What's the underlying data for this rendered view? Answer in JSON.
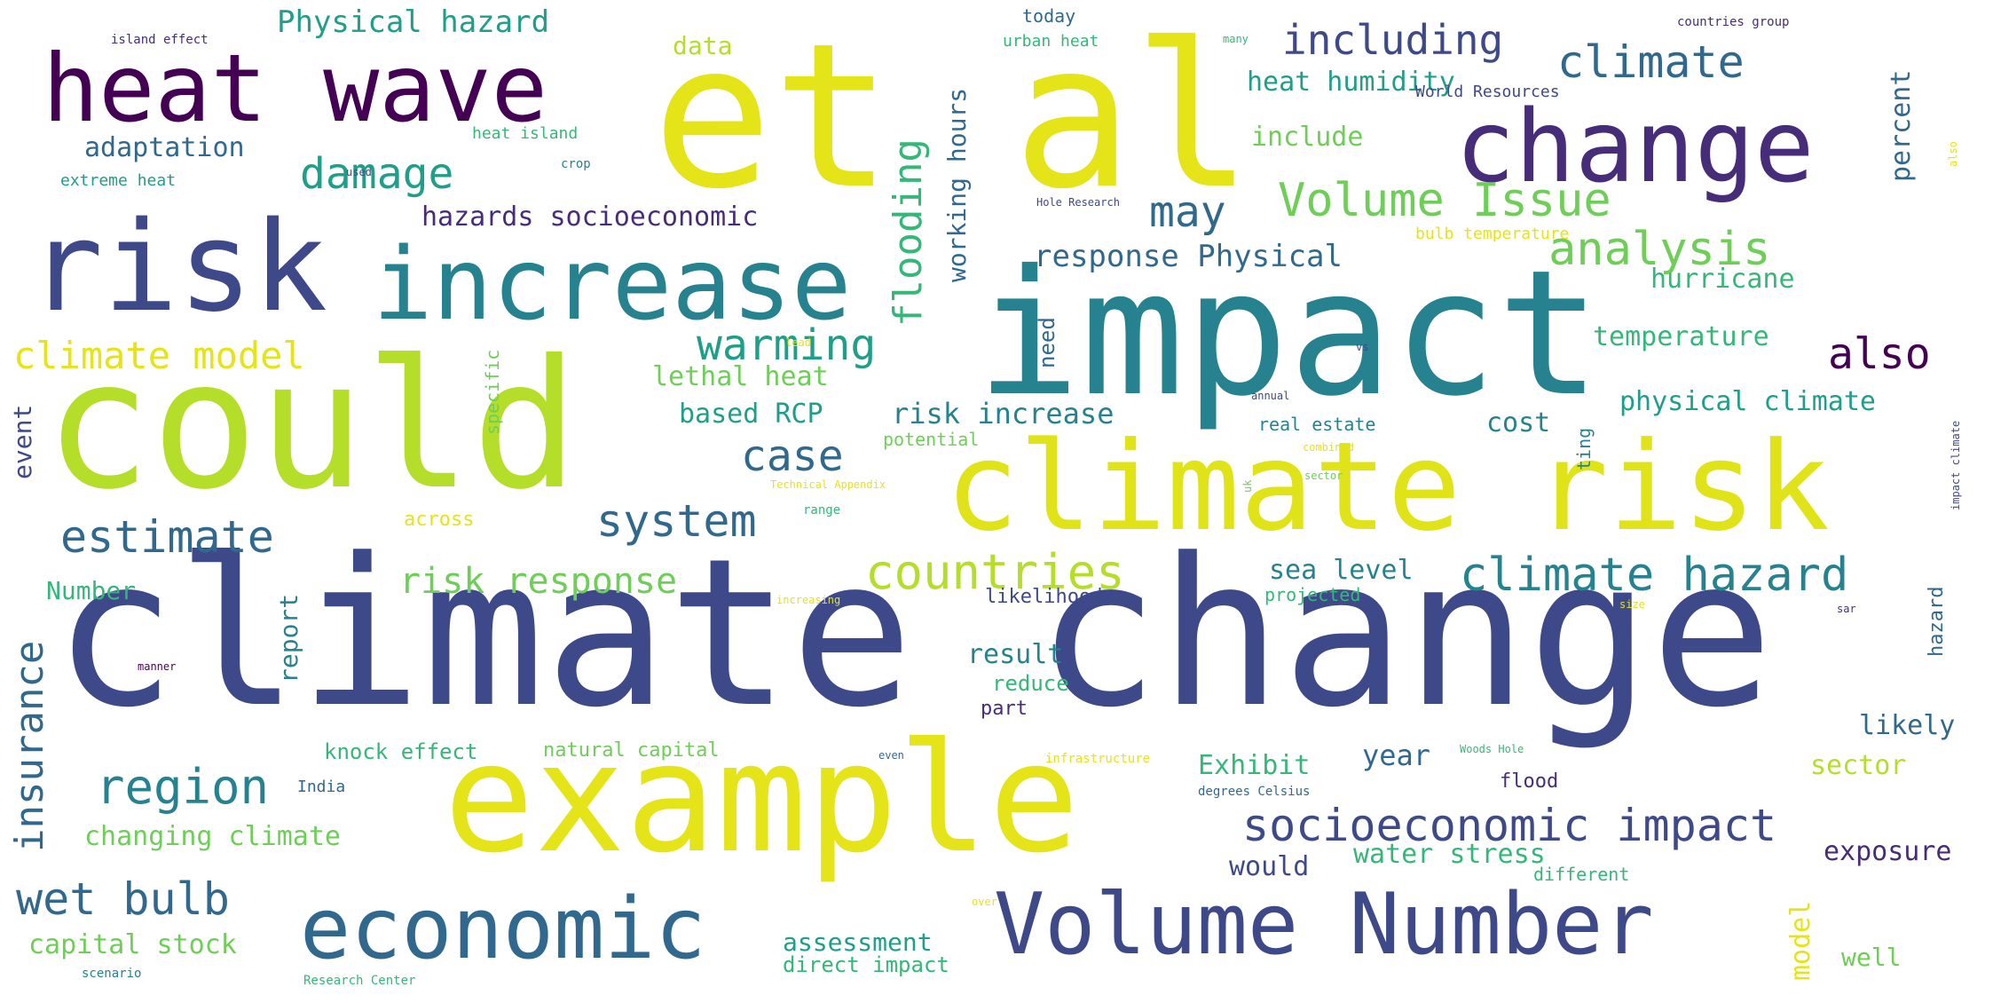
{
  "palette": {
    "background": "#ffffff",
    "dark-purple": "#440154",
    "purple": "#472c7a",
    "indigo": "#3e4989",
    "blue": "#31688e",
    "teal": "#26828e",
    "green-teal": "#1f9e89",
    "green": "#35b779",
    "light-green": "#6ece58",
    "lime": "#b5de2b",
    "yellow": "#e4e419"
  },
  "words": [
    {
      "text": "climate change",
      "color": "#3e4989"
    },
    {
      "text": "et al",
      "color": "#e4e419"
    },
    {
      "text": "impact",
      "color": "#26828e"
    },
    {
      "text": "could",
      "color": "#b5de2b"
    },
    {
      "text": "example",
      "color": "#e4e419"
    },
    {
      "text": "climate risk",
      "color": "#dfe318"
    },
    {
      "text": "risk",
      "color": "#3e4989"
    },
    {
      "text": "increase",
      "color": "#26828e"
    },
    {
      "text": "heat wave",
      "color": "#440154"
    },
    {
      "text": "change",
      "color": "#472c7a"
    },
    {
      "text": "Volume Number",
      "color": "#3e4989"
    },
    {
      "text": "economic",
      "color": "#31688e"
    },
    {
      "text": "socioeconomic impact",
      "color": "#3e4989"
    },
    {
      "text": "climate hazard",
      "color": "#26828e"
    },
    {
      "text": "countries",
      "color": "#b5de2b"
    },
    {
      "text": "Volume Issue",
      "color": "#6ece58"
    },
    {
      "text": "climate",
      "color": "#31688e"
    },
    {
      "text": "analysis",
      "color": "#6ece58"
    },
    {
      "text": "region",
      "color": "#26828e"
    },
    {
      "text": "estimate",
      "color": "#31688e"
    },
    {
      "text": "system",
      "color": "#31688e"
    },
    {
      "text": "damage",
      "color": "#1f9e89"
    },
    {
      "text": "wet bulb",
      "color": "#31688e"
    },
    {
      "text": "warming",
      "color": "#1f9e89"
    },
    {
      "text": "case",
      "color": "#31688e"
    },
    {
      "text": "may",
      "color": "#31688e"
    },
    {
      "text": "also",
      "color": "#440154"
    },
    {
      "text": "including",
      "color": "#3e4989"
    },
    {
      "text": "flooding",
      "color": "#35b779"
    },
    {
      "text": "insurance",
      "color": "#31688e"
    },
    {
      "text": "climate model",
      "color": "#e4e419"
    },
    {
      "text": "risk response",
      "color": "#6ece58"
    },
    {
      "text": "Physical hazard",
      "color": "#1f9e89"
    },
    {
      "text": "response Physical",
      "color": "#31688e"
    },
    {
      "text": "hazards socioeconomic",
      "color": "#472c7a"
    },
    {
      "text": "adaptation",
      "color": "#31688e"
    },
    {
      "text": "changing climate",
      "color": "#6ece58"
    },
    {
      "text": "capital stock",
      "color": "#6ece58"
    },
    {
      "text": "assessment",
      "color": "#1f9e89"
    },
    {
      "text": "direct impact",
      "color": "#35b779"
    },
    {
      "text": "working hours",
      "color": "#31688e"
    },
    {
      "text": "heat humidity",
      "color": "#1f9e89"
    },
    {
      "text": "include",
      "color": "#6ece58"
    },
    {
      "text": "hurricane",
      "color": "#35b779"
    },
    {
      "text": "temperature",
      "color": "#35b779"
    },
    {
      "text": "physical climate",
      "color": "#1f9e89"
    },
    {
      "text": "risk increase",
      "color": "#26828e"
    },
    {
      "text": "based RCP",
      "color": "#1f9e89"
    },
    {
      "text": "lethal heat",
      "color": "#6ece58"
    },
    {
      "text": "sea level",
      "color": "#26828e"
    },
    {
      "text": "result",
      "color": "#26828e"
    },
    {
      "text": "reduce",
      "color": "#35b779"
    },
    {
      "text": "part",
      "color": "#472c7a"
    },
    {
      "text": "likely",
      "color": "#31688e"
    },
    {
      "text": "sector",
      "color": "#b5de2b"
    },
    {
      "text": "Exhibit",
      "color": "#35b779"
    },
    {
      "text": "year",
      "color": "#31688e"
    },
    {
      "text": "exposure",
      "color": "#472c7a"
    },
    {
      "text": "would",
      "color": "#3e4989"
    },
    {
      "text": "water stress",
      "color": "#35b779"
    },
    {
      "text": "well",
      "color": "#6ece58"
    },
    {
      "text": "model",
      "color": "#e4e419"
    },
    {
      "text": "cost",
      "color": "#26828e"
    },
    {
      "text": "percent",
      "color": "#31688e"
    },
    {
      "text": "data",
      "color": "#b5de2b"
    },
    {
      "text": "Number",
      "color": "#35b779"
    },
    {
      "text": "report",
      "color": "#26828e"
    },
    {
      "text": "event",
      "color": "#3e4989"
    },
    {
      "text": "knock effect",
      "color": "#35b779"
    },
    {
      "text": "natural capital",
      "color": "#6ece58"
    },
    {
      "text": "need",
      "color": "#31688e"
    },
    {
      "text": "potential",
      "color": "#6ece58"
    },
    {
      "text": "real estate",
      "color": "#26828e"
    },
    {
      "text": "projected",
      "color": "#35b779"
    },
    {
      "text": "likelihood",
      "color": "#3e4989"
    },
    {
      "text": "different",
      "color": "#35b779"
    },
    {
      "text": "flood",
      "color": "#472c7a"
    },
    {
      "text": "hazard",
      "color": "#31688e"
    },
    {
      "text": "today",
      "color": "#31688e"
    },
    {
      "text": "urban heat",
      "color": "#35b779"
    },
    {
      "text": "heat island",
      "color": "#35b779"
    },
    {
      "text": "extreme heat",
      "color": "#1f9e89"
    },
    {
      "text": "island effect",
      "color": "#472c7a"
    },
    {
      "text": "crop",
      "color": "#26828e"
    },
    {
      "text": "used",
      "color": "#3e4989"
    },
    {
      "text": "specific",
      "color": "#6ece58"
    },
    {
      "text": "across",
      "color": "#e4e419"
    },
    {
      "text": "range",
      "color": "#35b779"
    },
    {
      "text": "Technical Appendix",
      "color": "#e4e419"
    },
    {
      "text": "increasing",
      "color": "#e4e419"
    },
    {
      "text": "India",
      "color": "#31688e"
    },
    {
      "text": "scenario",
      "color": "#26828e"
    },
    {
      "text": "Research Center",
      "color": "#35b779"
    },
    {
      "text": "degrees Celsius",
      "color": "#31688e"
    },
    {
      "text": "infrastructure",
      "color": "#e4e419"
    },
    {
      "text": "Woods Hole",
      "color": "#35b779"
    },
    {
      "text": "Hole Research",
      "color": "#3e4989"
    },
    {
      "text": "bulb temperature",
      "color": "#e4e419"
    },
    {
      "text": "World Resources",
      "color": "#3e4989"
    },
    {
      "text": "countries group",
      "color": "#472c7a"
    },
    {
      "text": "many",
      "color": "#35b779"
    },
    {
      "text": "impact climate",
      "color": "#3e4989"
    },
    {
      "text": "uk",
      "color": "#6ece58"
    },
    {
      "text": "sar",
      "color": "#472c7a"
    },
    {
      "text": "ting",
      "color": "#26828e"
    },
    {
      "text": "manner",
      "color": "#440154"
    },
    {
      "text": "even",
      "color": "#31688e"
    },
    {
      "text": "size",
      "color": "#e4e419"
    },
    {
      "text": "over",
      "color": "#e4e419"
    },
    {
      "text": "sector",
      "color": "#6ece58"
    },
    {
      "text": "annual",
      "color": "#3e4989"
    },
    {
      "text": "combined",
      "color": "#e4e419"
    },
    {
      "text": "also",
      "color": "#e4e419"
    },
    {
      "text": "vs",
      "color": "#3e4989"
    },
    {
      "text": "lead",
      "color": "#e4e419"
    }
  ]
}
